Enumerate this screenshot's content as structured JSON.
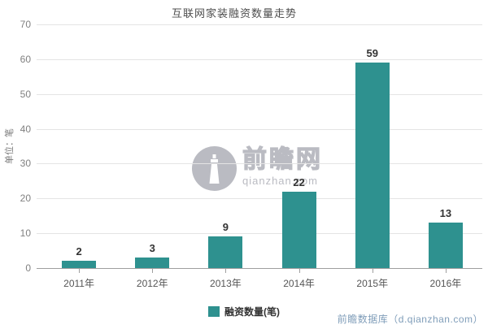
{
  "title": "互联网家装融资数量走势",
  "chart_data": {
    "type": "bar",
    "title": "互联网家装融资数量走势",
    "categories": [
      "2011年",
      "2012年",
      "2013年",
      "2014年",
      "2015年",
      "2016年"
    ],
    "values": [
      2,
      3,
      9,
      22,
      59,
      13
    ],
    "series_name": "融资数量(笔)",
    "xlabel": "",
    "ylabel": "单位：笔",
    "ylim": [
      0,
      70
    ],
    "ytick_step": 10,
    "yticks": [
      0,
      10,
      20,
      30,
      40,
      50,
      60,
      70
    ],
    "grid": true,
    "legend_position": "bottom",
    "bar_color": "#2e918f"
  },
  "legend": {
    "label": "融资数量(笔)",
    "swatch_color": "#2e918f"
  },
  "watermark": {
    "brand": "前瞻网",
    "domain": "qianzhan.com",
    "icon": "qianzhan-lighthouse-logo",
    "color": "#babbc2"
  },
  "footer": {
    "source": "前瞻数据库（d.qianzhan.com）",
    "color": "#7f9db9"
  },
  "colors": {
    "bar": "#2e918f",
    "gridline": "#e4e4e4",
    "axis": "#9f9f9f",
    "tick_text": "#808080",
    "value_text": "#333333",
    "title_text": "#4d4d4d",
    "footer_text": "#7f9db9",
    "watermark": "#babbc2",
    "background": "#ffffff"
  }
}
